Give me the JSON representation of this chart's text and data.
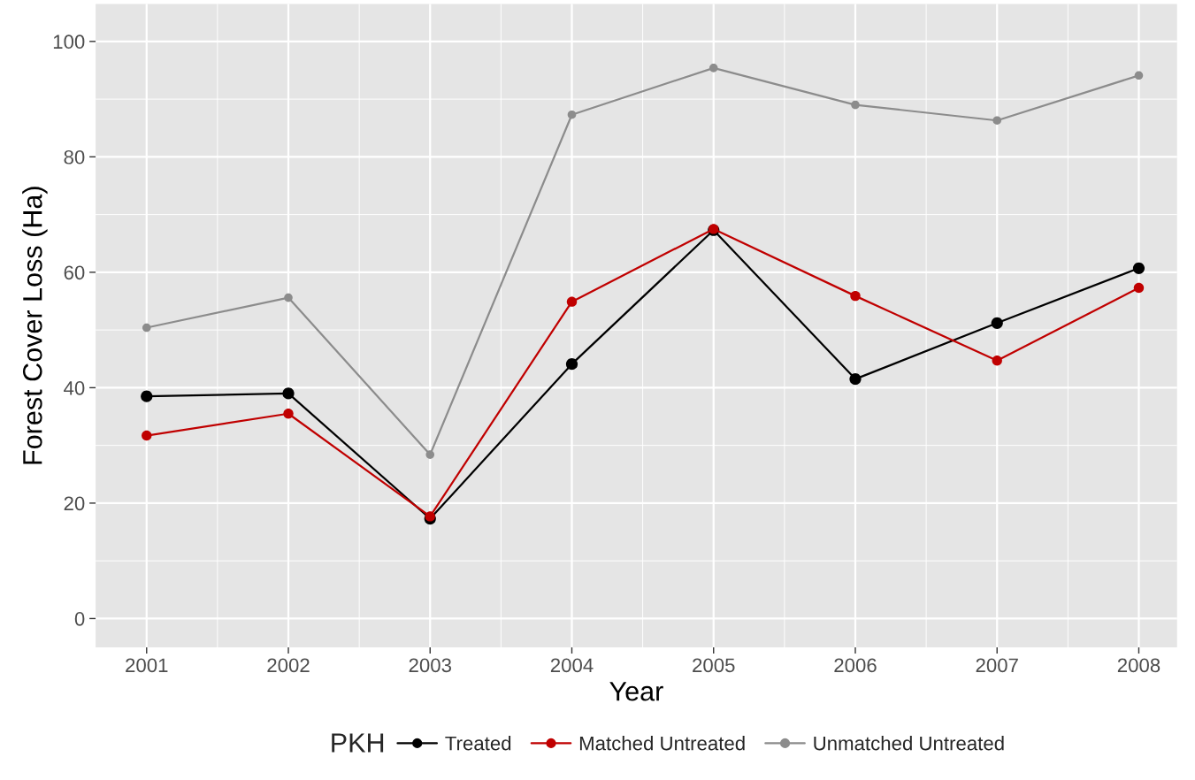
{
  "chart_data": {
    "type": "line",
    "xlabel": "Year",
    "ylabel": "Forest Cover Loss (Ha)",
    "legend_title": "PKH",
    "x": [
      2001,
      2002,
      2003,
      2004,
      2005,
      2006,
      2007,
      2008
    ],
    "series": [
      {
        "name": "Treated",
        "color": "#000000",
        "values": [
          38.5,
          39.0,
          17.3,
          44.1,
          67.3,
          41.5,
          51.2,
          60.7
        ]
      },
      {
        "name": "Matched Untreated",
        "color": "#c00000",
        "values": [
          31.7,
          35.5,
          17.7,
          54.9,
          67.5,
          55.9,
          44.7,
          57.3
        ]
      },
      {
        "name": "Unmatched Untreated",
        "color": "#8c8c8c",
        "values": [
          50.4,
          55.6,
          28.4,
          87.3,
          95.4,
          89.0,
          86.3,
          94.1
        ]
      }
    ],
    "xlim": [
      2000.64,
      2008.27
    ],
    "xticks": [
      2001,
      2002,
      2003,
      2004,
      2005,
      2006,
      2007,
      2008
    ],
    "ylim": [
      -5,
      106.5
    ],
    "yticks": [
      0,
      20,
      40,
      60,
      80,
      100
    ],
    "grid": true,
    "legend": "bottom",
    "marker": "circle",
    "line_style": "solid"
  }
}
